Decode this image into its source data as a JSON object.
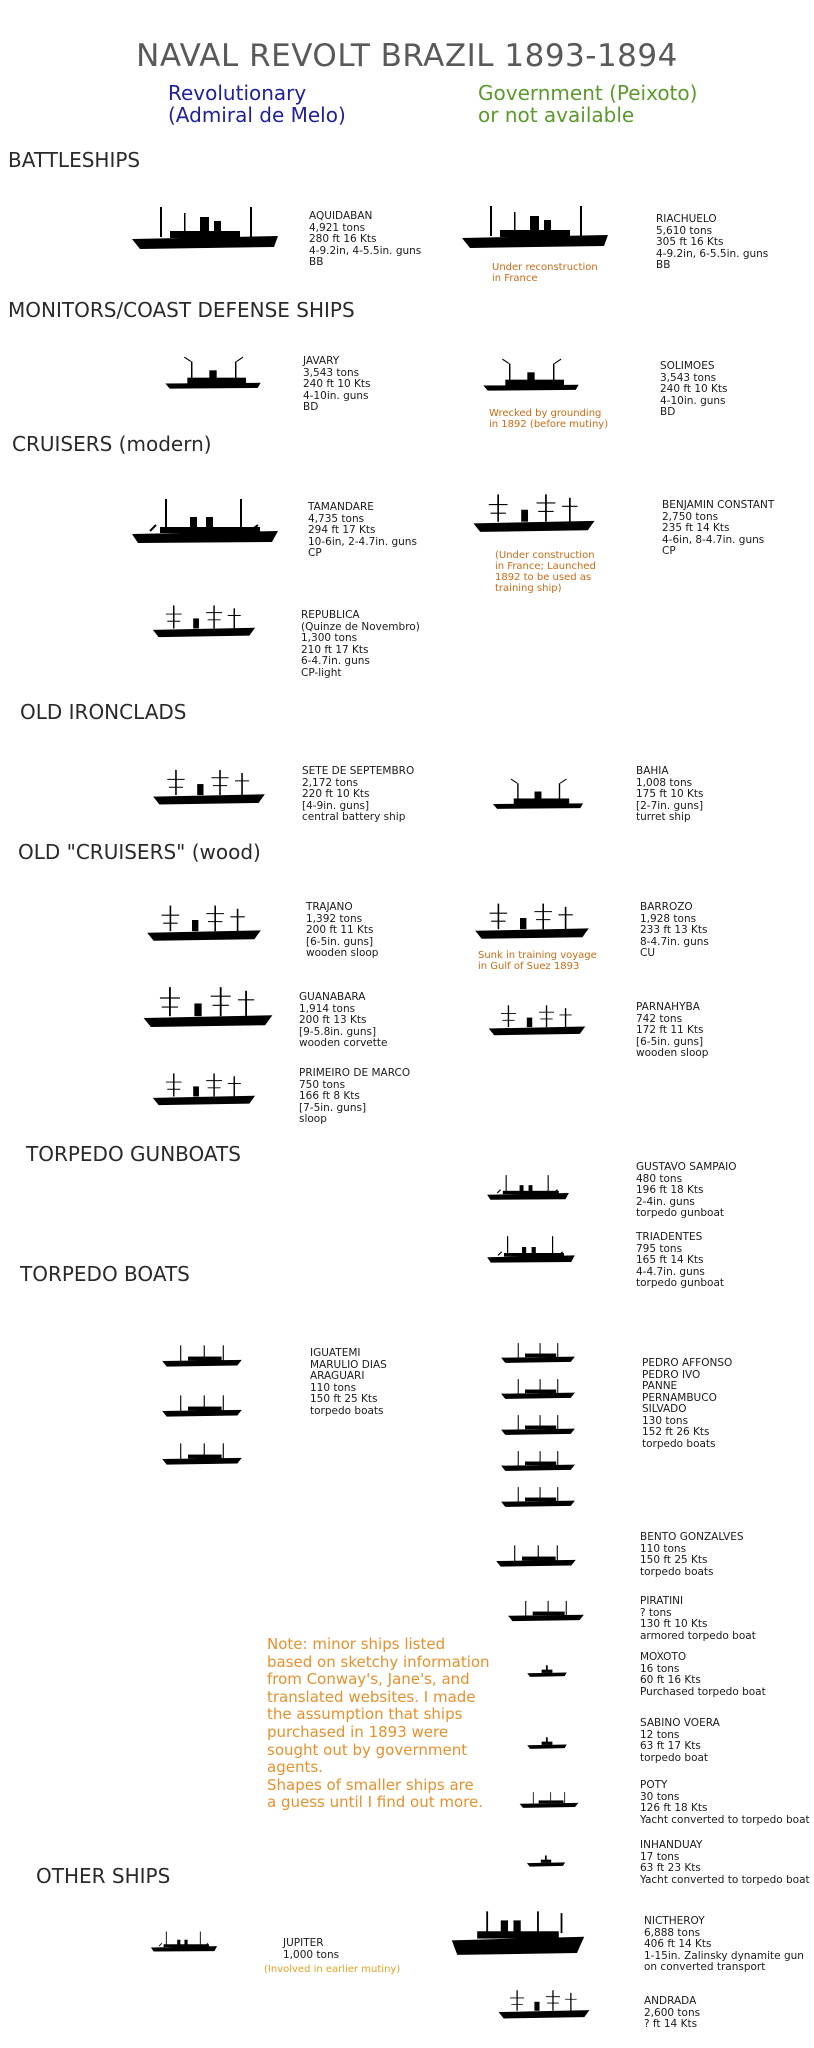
{
  "title": "NAVAL REVOLT BRAZIL 1893-1894",
  "legend": {
    "revolutionary": "Revolutionary\n(Admiral de Melo)",
    "government": "Government (Peixoto)\nor not available",
    "colors": {
      "revolutionary": "#1f1fa0",
      "government": "#5a9a2a",
      "note": "#cc6a14"
    }
  },
  "sections": {
    "battleships": "BATTLESHIPS",
    "monitors": "MONITORS/COAST DEFENSE SHIPS",
    "cruisers": "CRUISERS (modern)",
    "ironclads": "OLD IRONCLADS",
    "wood": "OLD \"CRUISERS\" (wood)",
    "gunboats": "TORPEDO GUNBOATS",
    "boats": "TORPEDO BOATS",
    "other": "OTHER SHIPS"
  },
  "ships": {
    "aquidaban": "AQUIDABAN\n4,921 tons\n280 ft    16 Kts\n4-9.2in, 4-5.5in. guns\nBB",
    "riachuelo": "RIACHUELO\n5,610 tons\n305 ft    16 Kts\n4-9.2in, 6-5.5in. guns\nBB",
    "riachuelo_note": "Under reconstruction\nin France",
    "javary": "JAVARY\n3,543 tons\n240 ft    10 Kts\n4-10in. guns\nBD",
    "solimoes": "SOLIMOES\n3,543 tons\n240 ft    10 Kts\n4-10in. guns\nBD",
    "solimoes_note": "Wrecked by grounding\nin 1892 (before mutiny)",
    "tamandare": "TAMANDARE\n4,735 tons\n294 ft    17 Kts\n10-6in, 2-4.7in. guns\nCP",
    "benjamin": "BENJAMIN CONSTANT\n2,750 tons\n235 ft    14 Kts\n4-6in, 8-4.7in. guns\nCP",
    "benjamin_note": "(Under construction\nin France; Launched\n1892 to be used as\ntraining ship)",
    "republica": "REPUBLICA\n(Quinze de Novembro)\n1,300 tons\n210 ft    17 Kts\n6-4.7in. guns\nCP-light",
    "sete": "SETE DE SEPTEMBRO\n2,172 tons\n220 ft    10 Kts\n[4-9in. guns]\ncentral battery ship",
    "bahia": "BAHIA\n1,008 tons\n175 ft    10 Kts\n[2-7in. guns]\nturret ship",
    "trajano": "TRAJANO\n1,392 tons\n200 ft    11 Kts\n[6-5in. guns]\nwooden sloop",
    "barrozo": "BARROZO\n1,928 tons\n233 ft    13 Kts\n8-4.7in. guns\nCU",
    "barrozo_note": "Sunk in training voyage\nin Gulf of Suez 1893",
    "guanabara": "GUANABARA\n1,914 tons\n200 ft    13 Kts\n[9-5.8in. guns]\nwooden corvette",
    "parnahyba": "PARNAHYBA\n742 tons\n172 ft    11 Kts\n[6-5in. guns]\nwooden sloop",
    "primeiro": "PRIMEIRO DE MARCO\n750 tons\n166 ft    8 Kts\n[7-5in. guns]\nsloop",
    "gustavo": "GUSTAVO SAMPAIO\n480 tons\n196 ft    18 Kts\n2-4in. guns\ntorpedo gunboat",
    "triadentes": "TRIADENTES\n795 tons\n165 ft    14 Kts\n4-4.7in. guns\ntorpedo gunboat",
    "iguatemi": "IGUATEMI\nMARULIO DIAS\nARAGUARI\n110 tons\n150 ft    25 Kts\ntorpedo boats",
    "pedro": "PEDRO AFFONSO\nPEDRO IVO\nPANNE\nPERNAMBUCO\nSILVADO\n130 tons\n152 ft    26 Kts\ntorpedo boats",
    "bento": "BENTO GONZALVES\n110 tons\n150 ft    25 Kts\ntorpedo boats",
    "piratini": "PIRATINI\n? tons\n130 ft    10 Kts\narmored torpedo boat",
    "moxoto": "MOXOTO\n16 tons\n60 ft    16 Kts\nPurchased torpedo boat",
    "sabino": "SABINO VOERA\n12 tons\n63 ft    17 Kts\ntorpedo boat",
    "poty": "POTY\n30 tons\n126 ft    18 Kts\nYacht converted to torpedo boat",
    "inhanduay": "INHANDUAY\n17 tons\n63 ft    23 Kts\nYacht converted to torpedo boat",
    "jupiter": "JUPITER\n1,000 tons",
    "jupiter_note": "(Involved in earlier mutiny)",
    "nictheroy": "NICTHEROY\n6,888 tons\n406 ft    14 Kts\n1-15in. Zalinsky dynamite gun\non converted transport",
    "andrada": "ANDRADA\n2,600 tons\n? ft    14 Kts"
  },
  "note": "Note: minor ships listed\nbased on sketchy information\nfrom Conway's, Jane's, and\ntranslated websites. I made\nthe assumption that ships\npurchased in 1893 were\nsought out by government\nagents.\nShapes of smaller ships are\na guess until I find out more."
}
